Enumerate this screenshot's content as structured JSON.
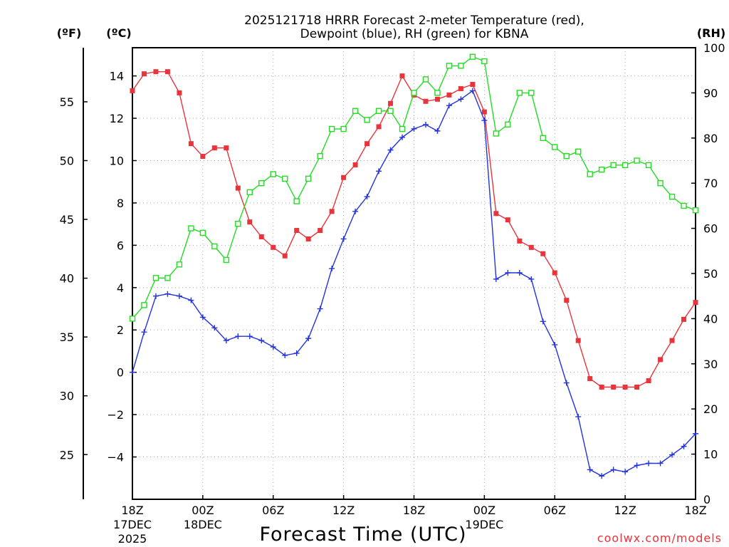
{
  "chart_data": {
    "type": "line",
    "title_line1": "2025121718 HRRR Forecast 2-meter Temperature (red),",
    "title_line2": "Dewpoint (blue), RH (green) for KBNA",
    "xlabel": "Forecast Time (UTC)",
    "credit": "coolwx.com/models",
    "unit_f": "(ºF)",
    "unit_c": "(ºC)",
    "unit_rh": "(RH)",
    "xlim": [
      0,
      48
    ],
    "ylim_c": [
      -6,
      15.333
    ],
    "ylim_rh": [
      0,
      100
    ],
    "x_ticks": [
      {
        "x": 0,
        "label": "18Z",
        "line2": "17DEC",
        "line3": "2025"
      },
      {
        "x": 6,
        "label": "00Z",
        "line2": "18DEC",
        "line3": ""
      },
      {
        "x": 12,
        "label": "06Z",
        "line2": "",
        "line3": ""
      },
      {
        "x": 18,
        "label": "12Z",
        "line2": "",
        "line3": ""
      },
      {
        "x": 24,
        "label": "18Z",
        "line2": "",
        "line3": ""
      },
      {
        "x": 30,
        "label": "00Z",
        "line2": "19DEC",
        "line3": ""
      },
      {
        "x": 36,
        "label": "06Z",
        "line2": "",
        "line3": ""
      },
      {
        "x": 42,
        "label": "12Z",
        "line2": "",
        "line3": ""
      },
      {
        "x": 48,
        "label": "18Z",
        "line2": "",
        "line3": ""
      }
    ],
    "c_ticks": [
      -4,
      -2,
      0,
      2,
      4,
      6,
      8,
      10,
      12,
      14
    ],
    "c_tick_labels": [
      "−4",
      "−2",
      "0",
      "2",
      "4",
      "6",
      "8",
      "10",
      "12",
      "14"
    ],
    "f_ticks": [
      25,
      30,
      35,
      40,
      45,
      50,
      55
    ],
    "f_tick_labels": [
      "25",
      "30",
      "35",
      "40",
      "45",
      "50",
      "55"
    ],
    "rh_ticks": [
      0,
      10,
      20,
      30,
      40,
      50,
      60,
      70,
      80,
      90,
      100
    ],
    "rh_tick_labels": [
      "0",
      "10",
      "20",
      "30",
      "40",
      "50",
      "60",
      "70",
      "80",
      "90",
      "100"
    ],
    "series": [
      {
        "name": "Temperature",
        "axis": "c",
        "color": "#e8343a",
        "marker": "filled-square",
        "values": [
          13.3,
          14.1,
          14.2,
          14.2,
          13.2,
          10.8,
          10.2,
          10.6,
          10.6,
          8.7,
          7.1,
          6.4,
          5.9,
          5.5,
          6.7,
          6.3,
          6.7,
          7.6,
          9.2,
          9.8,
          10.8,
          11.6,
          12.7,
          14.0,
          13.1,
          12.8,
          12.9,
          13.1,
          13.4,
          13.6,
          12.3,
          7.5,
          7.2,
          6.2,
          5.9,
          5.6,
          4.7,
          3.4,
          1.5,
          -0.3,
          -0.7,
          -0.7,
          -0.7,
          -0.7,
          -0.4,
          0.6,
          1.5,
          2.5,
          3.3
        ]
      },
      {
        "name": "Dewpoint",
        "axis": "c",
        "color": "#2233dd",
        "marker": "plus",
        "values": [
          0.0,
          1.9,
          3.6,
          3.7,
          3.6,
          3.4,
          2.6,
          2.1,
          1.5,
          1.7,
          1.7,
          1.5,
          1.2,
          0.8,
          0.9,
          1.6,
          3.0,
          4.9,
          6.3,
          7.6,
          8.3,
          9.5,
          10.5,
          11.1,
          11.5,
          11.7,
          11.4,
          12.6,
          12.9,
          13.3,
          11.9,
          4.4,
          4.7,
          4.7,
          4.4,
          2.4,
          1.3,
          -0.5,
          -2.1,
          -4.6,
          -4.9,
          -4.6,
          -4.7,
          -4.4,
          -4.3,
          -4.3,
          -3.9,
          -3.5,
          -2.9
        ]
      },
      {
        "name": "RH",
        "axis": "rh",
        "color": "#22dd22",
        "marker": "open-square",
        "values": [
          40,
          43,
          49,
          49,
          52,
          60,
          59,
          56,
          53,
          61,
          68,
          70,
          72,
          71,
          66,
          71,
          76,
          82,
          82,
          86,
          84,
          86,
          86,
          82,
          90,
          93,
          90,
          96,
          96,
          98,
          97,
          81,
          83,
          90,
          90,
          80,
          78,
          76,
          77,
          72,
          73,
          74,
          74,
          75,
          74,
          70,
          67,
          65,
          64
        ]
      }
    ]
  }
}
